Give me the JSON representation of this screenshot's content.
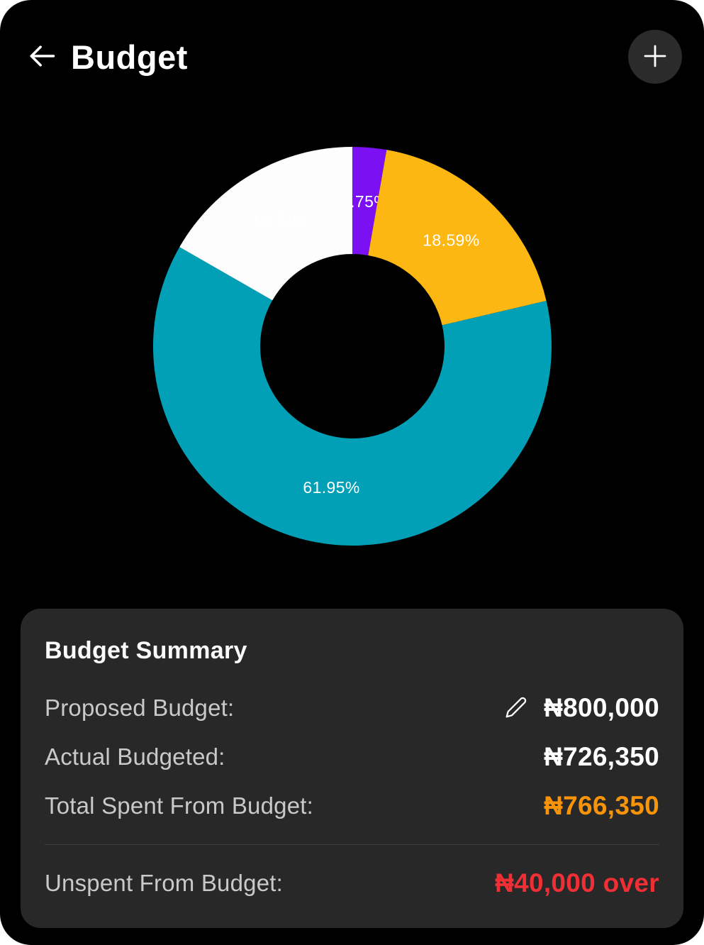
{
  "header": {
    "title": "Budget",
    "back_icon": "arrow-left",
    "add_icon": "plus"
  },
  "chart_data": {
    "type": "pie",
    "subtype": "donut",
    "title": "",
    "legend": "none",
    "direction": "clockwise",
    "start_angle_deg": 0,
    "outer_radius_px": 281,
    "inner_radius_px": 130,
    "label_color": "#ffffff",
    "slices": [
      {
        "label": "2.75%",
        "value": 2.75,
        "color": "#7b10f2"
      },
      {
        "label": "18.59%",
        "value": 18.59,
        "color": "#fcb713"
      },
      {
        "label": "61.95%",
        "value": 61.95,
        "color": "#02a0b6"
      },
      {
        "label": "16.71%",
        "value": 16.71,
        "color": "#fdfdfd"
      }
    ]
  },
  "summary": {
    "title": "Budget Summary",
    "rows": [
      {
        "label": "Proposed Budget:",
        "value": "₦800,000",
        "value_color": "#ffffff",
        "editable": true
      },
      {
        "label": "Actual Budgeted:",
        "value": "₦726,350",
        "value_color": "#ffffff"
      },
      {
        "label": "Total Spent From Budget:",
        "value": "₦766,350",
        "value_color": "#f79409"
      },
      {
        "label": "Unspent From Budget:",
        "value": "₦40,000 over",
        "value_color": "#ee3036",
        "separated": true
      }
    ]
  },
  "colors": {
    "app_background": "#000000",
    "card_background": "#282828",
    "label_gray": "#c9c9c9",
    "divider": "#3e3e3e",
    "accent_orange": "#f79409",
    "accent_red": "#ee3036"
  }
}
